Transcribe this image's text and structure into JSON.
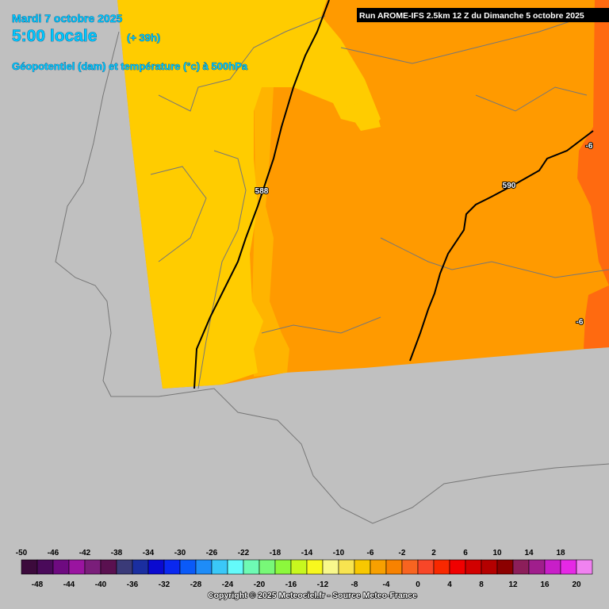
{
  "header": {
    "date": "Mardi 7 octobre 2025",
    "time": "5:00 locale",
    "lead": "(+ 39h)",
    "field": "Géopotentiel (dam) et température (°c) à 500hPa",
    "run": "Run AROME-IFS 2.5km 12 Z du Dimanche 5 octobre 2025"
  },
  "map": {
    "contour_labels": [
      "588",
      "590",
      "-6",
      "-6"
    ]
  },
  "legend": {
    "steps": [
      {
        "value": -50,
        "color": "#3c0a3c"
      },
      {
        "value": -48,
        "color": "#4a0a5a"
      },
      {
        "value": -46,
        "color": "#6e0a80"
      },
      {
        "value": -44,
        "color": "#9a14a0"
      },
      {
        "value": -42,
        "color": "#7a1e7a"
      },
      {
        "value": -40,
        "color": "#5a1050"
      },
      {
        "value": -38,
        "color": "#3a3a78"
      },
      {
        "value": -36,
        "color": "#1a2ea0"
      },
      {
        "value": -34,
        "color": "#0a0ad0"
      },
      {
        "value": -32,
        "color": "#0a28f0"
      },
      {
        "value": -30,
        "color": "#0a5af8"
      },
      {
        "value": -28,
        "color": "#1e8cf8"
      },
      {
        "value": -26,
        "color": "#3ac8f8"
      },
      {
        "value": -24,
        "color": "#64fafa"
      },
      {
        "value": -22,
        "color": "#6efab4"
      },
      {
        "value": -20,
        "color": "#78f878"
      },
      {
        "value": -18,
        "color": "#8cf83c"
      },
      {
        "value": -16,
        "color": "#c8f81e"
      },
      {
        "value": -14,
        "color": "#f8f81e"
      },
      {
        "value": -12,
        "color": "#f8f88c"
      },
      {
        "value": -10,
        "color": "#f8e450"
      },
      {
        "value": -8,
        "color": "#f8c800"
      },
      {
        "value": -6,
        "color": "#f8a000"
      },
      {
        "value": -4,
        "color": "#f88200"
      },
      {
        "value": -2,
        "color": "#f86420"
      },
      {
        "value": 0,
        "color": "#f84628"
      },
      {
        "value": 2,
        "color": "#f82800"
      },
      {
        "value": 4,
        "color": "#f00000"
      },
      {
        "value": 6,
        "color": "#d20000"
      },
      {
        "value": 8,
        "color": "#b40000"
      },
      {
        "value": 10,
        "color": "#8c0000"
      },
      {
        "value": 12,
        "color": "#8c1e5a"
      },
      {
        "value": 14,
        "color": "#a01e8c"
      },
      {
        "value": 16,
        "color": "#c81ec8"
      },
      {
        "value": 18,
        "color": "#e628e6"
      },
      {
        "value": 20,
        "color": "#f082f0"
      }
    ]
  },
  "footer": {
    "copyright": "Copyright © 2025 Meteociel.fr - Source Meteo-France"
  }
}
